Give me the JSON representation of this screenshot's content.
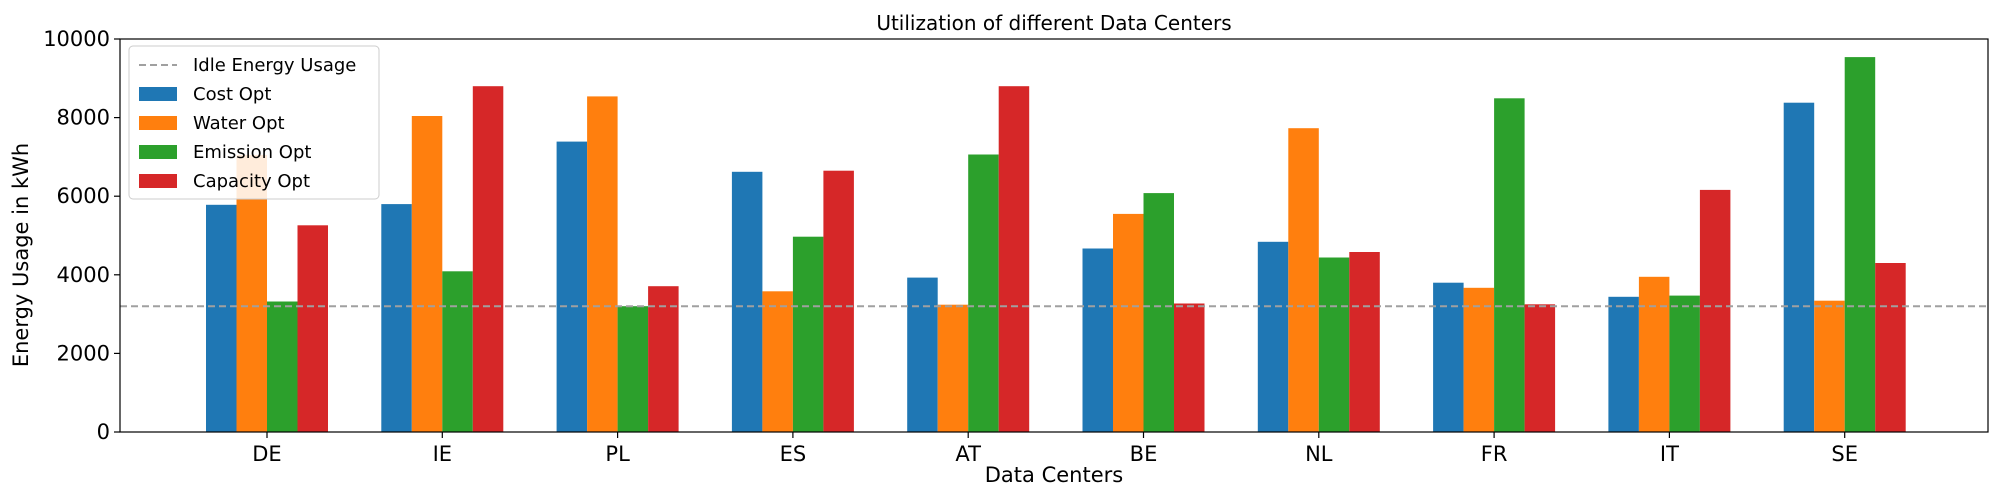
{
  "chart_data": {
    "type": "bar",
    "title": "Utilization of different Data Centers",
    "xlabel": "Data Centers",
    "ylabel": "Energy Usage in kWh",
    "ylim": [
      0,
      10000
    ],
    "yticks": [
      0,
      2000,
      4000,
      6000,
      8000,
      10000
    ],
    "categories": [
      "DE",
      "IE",
      "PL",
      "ES",
      "AT",
      "BE",
      "NL",
      "FR",
      "IT",
      "SE"
    ],
    "series": [
      {
        "name": "Cost Opt",
        "color": "#1f77b4",
        "values": [
          5780,
          5800,
          7390,
          6620,
          3930,
          4670,
          4840,
          3800,
          3440,
          8380
        ]
      },
      {
        "name": "Water Opt",
        "color": "#ff7f0e",
        "values": [
          7050,
          8040,
          8540,
          3580,
          3240,
          5550,
          7730,
          3670,
          3950,
          3340
        ]
      },
      {
        "name": "Emission Opt",
        "color": "#2ca02c",
        "values": [
          3320,
          4090,
          3200,
          4970,
          7060,
          6080,
          4440,
          8490,
          3470,
          9540
        ]
      },
      {
        "name": "Capacity Opt",
        "color": "#d62728",
        "values": [
          5260,
          8800,
          3710,
          6650,
          8800,
          3270,
          4580,
          3250,
          6160,
          4300
        ]
      }
    ],
    "reference_line": {
      "name": "Idle Energy Usage",
      "value": 3200,
      "color": "#a0a0a0",
      "style": "dashed"
    },
    "legend_position": "top-left",
    "grid": false
  }
}
